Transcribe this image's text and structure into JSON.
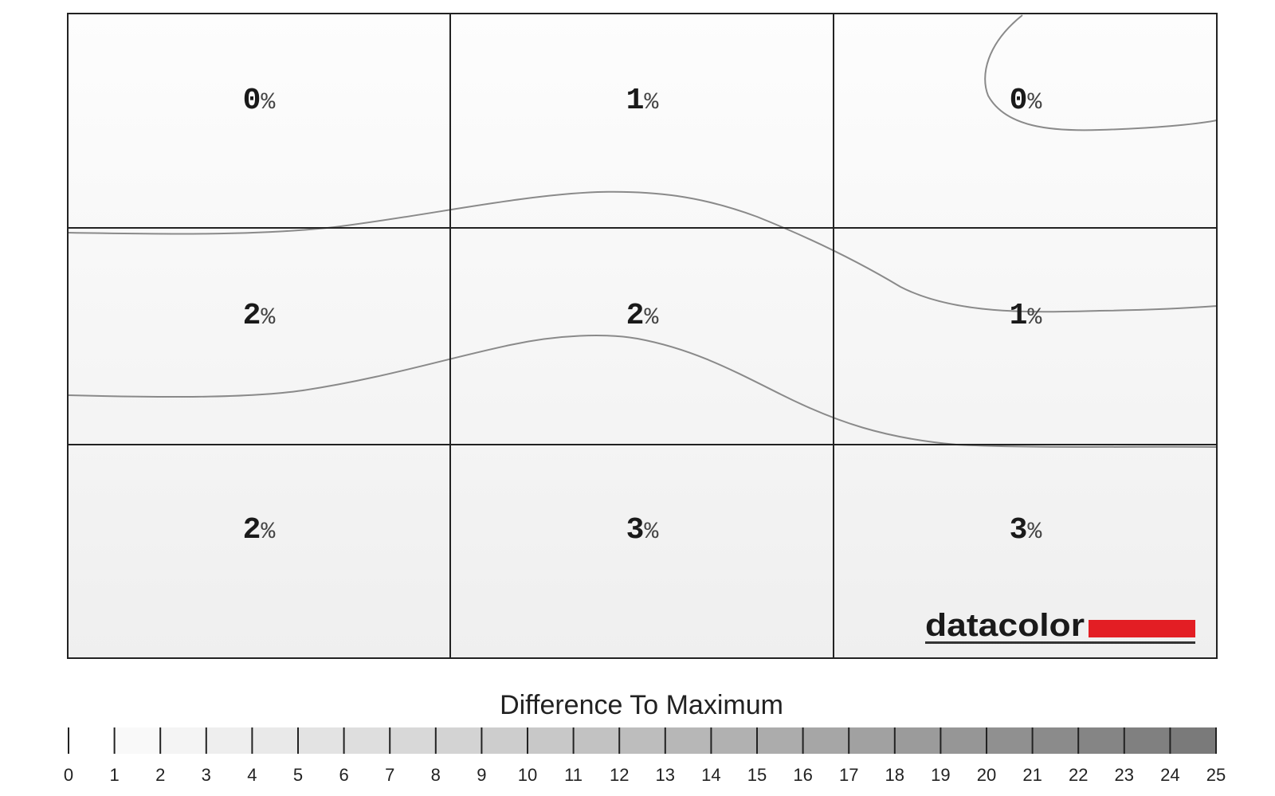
{
  "chart_data": {
    "type": "heatmap",
    "rows": 3,
    "cols": 3,
    "unit": "%",
    "values": [
      [
        0,
        1,
        0
      ],
      [
        2,
        2,
        1
      ],
      [
        2,
        3,
        3
      ]
    ],
    "cell_labels": [
      [
        "0",
        "1",
        "0"
      ],
      [
        "2",
        "2",
        "1"
      ],
      [
        "2",
        "3",
        "3"
      ]
    ],
    "scale": {
      "title": "Difference To Maximum",
      "min": 0,
      "max": 25,
      "ticks": [
        "0",
        "1",
        "2",
        "3",
        "4",
        "5",
        "6",
        "7",
        "8",
        "9",
        "10",
        "11",
        "12",
        "13",
        "14",
        "15",
        "16",
        "17",
        "18",
        "19",
        "20",
        "21",
        "22",
        "23",
        "24",
        "25"
      ],
      "color_low": "#ffffff",
      "color_high": "#7a7a7a"
    }
  },
  "logo": {
    "text": "datacolor",
    "accent_color": "#e31e24"
  }
}
